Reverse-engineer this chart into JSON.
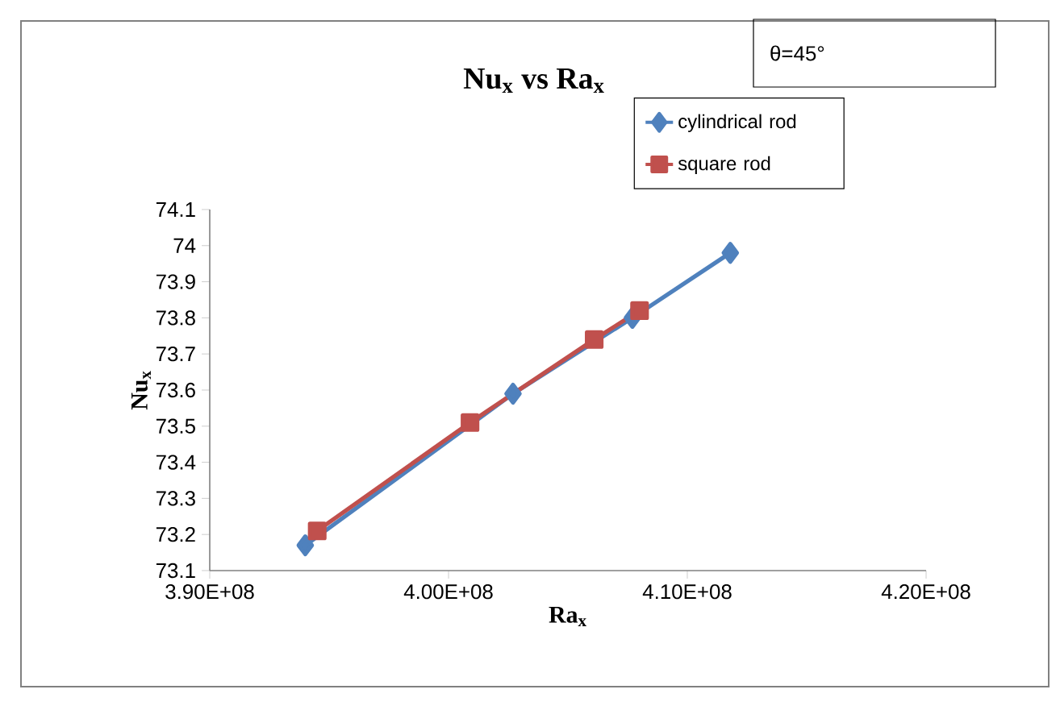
{
  "chart_data": {
    "type": "line",
    "title": "Nu$_{x}$  vs Ra$_{x}$",
    "xlabel": "Ra$_{x}$",
    "ylabel": "Nu$_{x}$",
    "annotations": [
      "θ=45°"
    ],
    "series": [
      {
        "name": "cylindrical rod",
        "color": "#4f81bd",
        "marker": "diamond",
        "x": [
          394000000,
          402700000,
          407700000,
          411800000
        ],
        "values": [
          73.17,
          73.59,
          73.8,
          73.98
        ]
      },
      {
        "name": "square rod",
        "color": "#c0504d",
        "marker": "square",
        "x": [
          394500000,
          400900000,
          406100000,
          408000000
        ],
        "values": [
          73.21,
          73.51,
          73.74,
          73.82
        ]
      }
    ],
    "xlim": [
      390000000,
      420000000
    ],
    "xticks": [
      {
        "value": 390000000,
        "label": "3.90E+08"
      },
      {
        "value": 400000000,
        "label": "4.00E+08"
      },
      {
        "value": 410000000,
        "label": "4.10E+08"
      },
      {
        "value": 420000000,
        "label": "4.20E+08"
      }
    ],
    "ylim": [
      73.1,
      74.1
    ],
    "yticks": [
      73.1,
      73.2,
      73.3,
      73.4,
      73.5,
      73.6,
      73.7,
      73.8,
      73.9,
      74,
      74.1
    ],
    "legend": "top right",
    "grid": false,
    "line_style": "solid"
  }
}
